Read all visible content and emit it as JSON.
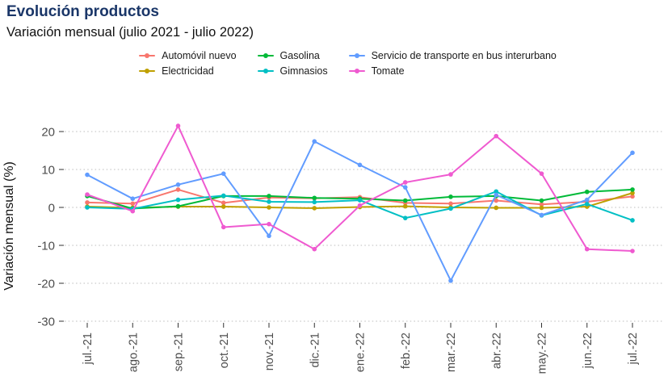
{
  "header": {
    "title": "Evolución productos",
    "subtitle": "Variación mensual (julio 2021 - julio 2022)",
    "title_color": "#1a3668"
  },
  "colors": {
    "background": "#ffffff",
    "grid": "#c9c9c9",
    "axis_text": "#4d4d4d",
    "tick_mark": "#333333"
  },
  "chart_data": {
    "type": "line",
    "title": "Evolución productos",
    "subtitle": "Variación mensual (julio 2021 - julio 2022)",
    "xlabel": "",
    "ylabel": "Variación mensual (%)",
    "ylim": [
      -32,
      23
    ],
    "yticks": [
      20,
      10,
      0,
      -10,
      -20,
      -30
    ],
    "grid": "horizontal-dotted",
    "legend_position": "top-center",
    "marker": "point",
    "categories": [
      "jul.-21",
      "ago.-21",
      "sep.-21",
      "oct.-21",
      "nov.-21",
      "dic.-21",
      "ene.-22",
      "feb.-22",
      "mar.-22",
      "abr.-22",
      "may.-22",
      "jun.-22",
      "jul.-22"
    ],
    "series": [
      {
        "name": "Automóvil nuevo",
        "color": "#f8766d",
        "values": [
          1.3,
          1.0,
          4.7,
          1.2,
          2.6,
          2.4,
          2.7,
          1.2,
          1.0,
          1.8,
          0.8,
          1.5,
          2.9
        ]
      },
      {
        "name": "Electricidad",
        "color": "#bfa000",
        "values": [
          0.2,
          -0.1,
          0.2,
          0.2,
          0.0,
          -0.2,
          0.1,
          0.3,
          0.0,
          -0.1,
          -0.1,
          0.2,
          3.8
        ]
      },
      {
        "name": "Gasolina",
        "color": "#00ba38",
        "values": [
          3.0,
          -0.3,
          0.3,
          3.0,
          3.0,
          2.5,
          2.3,
          1.8,
          2.8,
          3.0,
          1.8,
          4.1,
          4.7
        ]
      },
      {
        "name": "Gimnasios",
        "color": "#00bfc4",
        "values": [
          0.0,
          -0.4,
          2.0,
          3.1,
          1.5,
          1.4,
          1.9,
          -2.8,
          -0.3,
          4.2,
          -2.1,
          0.9,
          -3.4
        ]
      },
      {
        "name": "Servicio de transporte en bus interurbano",
        "color": "#619cff",
        "values": [
          8.6,
          2.3,
          6.0,
          8.9,
          -7.5,
          17.4,
          11.2,
          5.3,
          -19.3,
          3.3,
          -2.0,
          2.0,
          14.4
        ]
      },
      {
        "name": "Tomate",
        "color": "#ef5ad0",
        "values": [
          3.4,
          -1.0,
          21.5,
          -5.2,
          -4.4,
          -11.0,
          0.5,
          6.6,
          8.7,
          18.8,
          8.9,
          -11.0,
          -11.5
        ]
      }
    ]
  }
}
